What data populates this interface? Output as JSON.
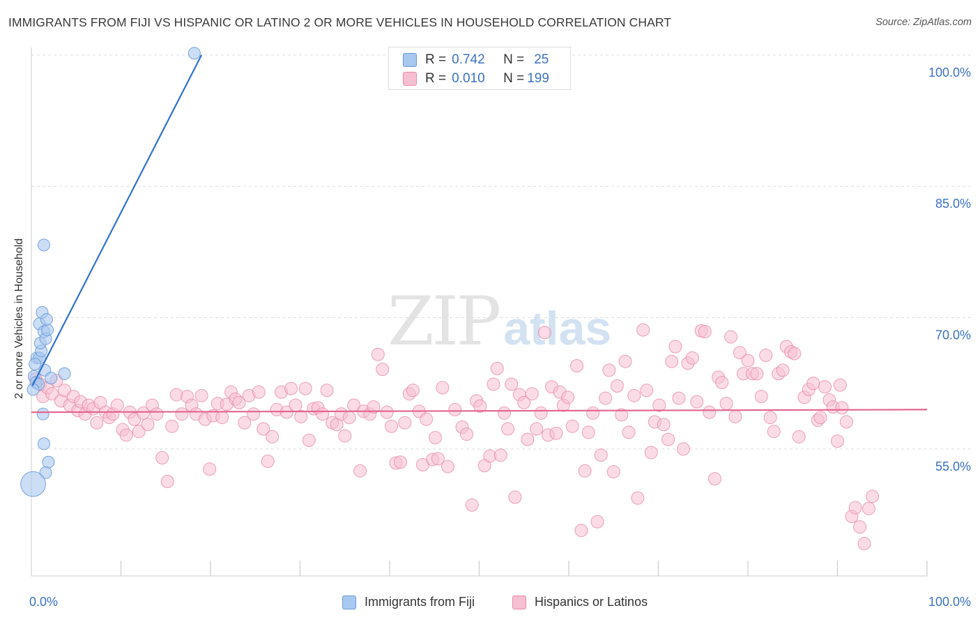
{
  "header": {
    "title": "IMMIGRANTS FROM FIJI VS HISPANIC OR LATINO 2 OR MORE VEHICLES IN HOUSEHOLD CORRELATION CHART",
    "source": "Source: ZipAtlas.com"
  },
  "watermark": {
    "zip": "ZIP",
    "atlas": "atlas"
  },
  "stats": {
    "rows": [
      {
        "r_label": "R =",
        "r_value": "0.742",
        "n_label": "N =",
        "n_value": "25",
        "color": "#a9c8f0",
        "border": "#6a9ad8"
      },
      {
        "r_label": "R =",
        "r_value": "0.010",
        "n_label": "N =",
        "n_value": "199",
        "color": "#f7bfd2",
        "border": "#e68aa9"
      }
    ]
  },
  "chart_data": {
    "type": "scatter",
    "title": "IMMIGRANTS FROM FIJI VS HISPANIC OR LATINO 2 OR MORE VEHICLES IN HOUSEHOLD CORRELATION CHART",
    "xlabel": "",
    "ylabel": "2 or more Vehicles in Household",
    "xlim": [
      0,
      100
    ],
    "ylim": [
      40.5,
      101.5
    ],
    "x_tick_labels": [
      "0.0%",
      "100.0%"
    ],
    "y_ticks": [
      100,
      85,
      70,
      55
    ],
    "y_tick_labels": [
      "100.0%",
      "85.0%",
      "70.0%",
      "55.0%"
    ],
    "grid": true,
    "legend_position": "bottom",
    "series": [
      {
        "name": "Immigrants from Fiji",
        "color": "#a9c8f0",
        "stroke": "#6a9ad8",
        "trend_color": "#2f72d0",
        "trend": {
          "x": [
            0.1,
            19.0
          ],
          "y": [
            62.2,
            100.0
          ]
        },
        "points": [
          [
            0.3,
            63.3
          ],
          [
            0.5,
            62.6
          ],
          [
            0.8,
            62.4
          ],
          [
            0.6,
            65.4
          ],
          [
            0.9,
            65.4
          ],
          [
            1.1,
            66.2
          ],
          [
            1.0,
            67.1
          ],
          [
            0.9,
            69.3
          ],
          [
            1.2,
            70.6
          ],
          [
            1.4,
            68.4
          ],
          [
            1.6,
            67.6
          ],
          [
            1.8,
            68.6
          ],
          [
            1.7,
            69.8
          ],
          [
            1.5,
            64.0
          ],
          [
            2.2,
            63.1
          ],
          [
            3.7,
            63.6
          ],
          [
            1.3,
            59.0
          ],
          [
            1.4,
            55.6
          ],
          [
            1.9,
            53.5
          ],
          [
            1.6,
            52.3
          ],
          [
            1.4,
            78.3
          ],
          [
            0.4,
            64.7
          ],
          [
            0.2,
            51.0
          ],
          [
            0.2,
            61.8
          ],
          [
            18.2,
            100.2
          ]
        ],
        "sizes": [
          10,
          10,
          10,
          10,
          10,
          10,
          10,
          10,
          10,
          10,
          10,
          10,
          10,
          10,
          10,
          10,
          10,
          10,
          10,
          10,
          10,
          10,
          21,
          10,
          10
        ]
      },
      {
        "name": "Hispanics or Latinos",
        "color": "#f7bfd2",
        "stroke": "#e68aa9",
        "trend_color": "#e4638e",
        "trend": {
          "x": [
            0,
            100
          ],
          "y": [
            59.2,
            59.5
          ]
        },
        "points": [
          [
            0.5,
            63.0
          ],
          [
            1.0,
            62.4
          ],
          [
            1.3,
            61.0
          ],
          [
            1.8,
            62.0
          ],
          [
            2.3,
            61.3
          ],
          [
            2.8,
            62.8
          ],
          [
            3.3,
            60.5
          ],
          [
            3.7,
            61.7
          ],
          [
            4.3,
            60.0
          ],
          [
            4.7,
            61.0
          ],
          [
            5.2,
            59.4
          ],
          [
            5.5,
            60.4
          ],
          [
            6.0,
            59.0
          ],
          [
            6.4,
            60.0
          ],
          [
            6.9,
            59.6
          ],
          [
            7.3,
            58.0
          ],
          [
            7.7,
            60.3
          ],
          [
            8.3,
            59.2
          ],
          [
            8.7,
            58.6
          ],
          [
            9.1,
            59.0
          ],
          [
            9.6,
            60.0
          ],
          [
            10.2,
            57.2
          ],
          [
            10.6,
            56.6
          ],
          [
            11.0,
            59.2
          ],
          [
            11.5,
            58.4
          ],
          [
            12.0,
            57.0
          ],
          [
            12.5,
            59.1
          ],
          [
            13.0,
            57.8
          ],
          [
            13.5,
            60.0
          ],
          [
            14.0,
            59.0
          ],
          [
            14.6,
            54.0
          ],
          [
            15.2,
            51.3
          ],
          [
            15.7,
            57.6
          ],
          [
            16.2,
            61.2
          ],
          [
            16.8,
            59.0
          ],
          [
            17.4,
            61.0
          ],
          [
            17.9,
            60.0
          ],
          [
            18.4,
            59.0
          ],
          [
            19.0,
            61.1
          ],
          [
            19.4,
            58.4
          ],
          [
            19.9,
            52.7
          ],
          [
            20.3,
            58.8
          ],
          [
            20.8,
            60.2
          ],
          [
            21.3,
            58.6
          ],
          [
            21.8,
            60.1
          ],
          [
            22.3,
            61.5
          ],
          [
            22.8,
            60.7
          ],
          [
            23.2,
            60.3
          ],
          [
            23.8,
            58.0
          ],
          [
            24.3,
            61.1
          ],
          [
            24.8,
            59.0
          ],
          [
            25.4,
            61.5
          ],
          [
            25.9,
            57.3
          ],
          [
            26.4,
            53.6
          ],
          [
            26.9,
            56.4
          ],
          [
            27.4,
            59.5
          ],
          [
            27.9,
            61.5
          ],
          [
            28.5,
            59.2
          ],
          [
            29.0,
            61.9
          ],
          [
            29.5,
            60.0
          ],
          [
            30.1,
            58.7
          ],
          [
            30.6,
            61.9
          ],
          [
            31.0,
            56.0
          ],
          [
            31.5,
            59.6
          ],
          [
            32.0,
            59.7
          ],
          [
            32.5,
            59.0
          ],
          [
            33.0,
            61.7
          ],
          [
            33.6,
            58.0
          ],
          [
            34.1,
            57.8
          ],
          [
            34.6,
            59.0
          ],
          [
            35.0,
            56.5
          ],
          [
            35.5,
            58.6
          ],
          [
            36.0,
            60.0
          ],
          [
            36.7,
            52.5
          ],
          [
            37.1,
            59.3
          ],
          [
            37.8,
            59.0
          ],
          [
            38.2,
            59.8
          ],
          [
            38.7,
            65.8
          ],
          [
            39.2,
            64.1
          ],
          [
            39.7,
            59.2
          ],
          [
            40.2,
            57.6
          ],
          [
            40.7,
            53.4
          ],
          [
            41.2,
            53.5
          ],
          [
            41.7,
            58.0
          ],
          [
            42.2,
            61.3
          ],
          [
            42.6,
            61.7
          ],
          [
            43.3,
            59.3
          ],
          [
            43.7,
            53.2
          ],
          [
            44.1,
            58.4
          ],
          [
            44.8,
            53.8
          ],
          [
            45.1,
            56.3
          ],
          [
            45.4,
            53.9
          ],
          [
            45.9,
            62.0
          ],
          [
            46.5,
            53.0
          ],
          [
            47.3,
            59.5
          ],
          [
            48.1,
            57.5
          ],
          [
            48.6,
            56.7
          ],
          [
            49.2,
            48.6
          ],
          [
            49.7,
            60.5
          ],
          [
            50.1,
            59.9
          ],
          [
            50.6,
            53.1
          ],
          [
            51.2,
            54.2
          ],
          [
            51.6,
            62.4
          ],
          [
            52.0,
            64.2
          ],
          [
            52.4,
            54.3
          ],
          [
            52.8,
            59.1
          ],
          [
            53.2,
            57.3
          ],
          [
            53.6,
            62.4
          ],
          [
            54.0,
            49.5
          ],
          [
            54.5,
            61.2
          ],
          [
            55.0,
            60.3
          ],
          [
            55.4,
            56.1
          ],
          [
            55.9,
            61.3
          ],
          [
            56.4,
            57.3
          ],
          [
            56.9,
            59.1
          ],
          [
            57.3,
            68.3
          ],
          [
            57.7,
            56.6
          ],
          [
            58.1,
            62.1
          ],
          [
            58.6,
            56.8
          ],
          [
            59.0,
            61.5
          ],
          [
            59.4,
            60.0
          ],
          [
            59.9,
            60.9
          ],
          [
            60.4,
            57.6
          ],
          [
            60.9,
            64.5
          ],
          [
            61.4,
            45.7
          ],
          [
            61.8,
            52.5
          ],
          [
            62.2,
            56.9
          ],
          [
            62.7,
            59.1
          ],
          [
            63.2,
            46.7
          ],
          [
            63.6,
            54.3
          ],
          [
            64.1,
            60.8
          ],
          [
            64.5,
            64.0
          ],
          [
            65.0,
            52.4
          ],
          [
            65.4,
            62.2
          ],
          [
            65.9,
            58.9
          ],
          [
            66.3,
            65.0
          ],
          [
            66.7,
            56.9
          ],
          [
            67.3,
            61.1
          ],
          [
            67.7,
            49.4
          ],
          [
            68.3,
            68.6
          ],
          [
            68.7,
            61.7
          ],
          [
            69.2,
            54.6
          ],
          [
            69.6,
            58.1
          ],
          [
            70.1,
            60.0
          ],
          [
            70.6,
            57.8
          ],
          [
            71.1,
            56.1
          ],
          [
            71.5,
            65.0
          ],
          [
            71.9,
            66.7
          ],
          [
            72.3,
            60.8
          ],
          [
            72.8,
            55.0
          ],
          [
            73.3,
            64.8
          ],
          [
            73.8,
            65.4
          ],
          [
            74.3,
            60.4
          ],
          [
            74.8,
            68.5
          ],
          [
            75.2,
            68.4
          ],
          [
            75.7,
            59.2
          ],
          [
            76.3,
            51.6
          ],
          [
            76.7,
            63.2
          ],
          [
            77.1,
            62.6
          ],
          [
            77.6,
            60.2
          ],
          [
            78.1,
            67.8
          ],
          [
            78.6,
            58.7
          ],
          [
            79.1,
            66.0
          ],
          [
            79.5,
            63.6
          ],
          [
            80.0,
            65.1
          ],
          [
            80.5,
            63.6
          ],
          [
            81.0,
            63.6
          ],
          [
            81.5,
            61.0
          ],
          [
            82.0,
            65.7
          ],
          [
            82.5,
            58.6
          ],
          [
            82.9,
            57.0
          ],
          [
            83.4,
            63.6
          ],
          [
            83.9,
            64.0
          ],
          [
            84.3,
            66.7
          ],
          [
            84.8,
            66.1
          ],
          [
            85.2,
            65.9
          ],
          [
            85.7,
            56.4
          ],
          [
            86.3,
            60.9
          ],
          [
            86.8,
            61.8
          ],
          [
            87.3,
            62.5
          ],
          [
            87.8,
            58.3
          ],
          [
            88.1,
            58.6
          ],
          [
            88.6,
            62.1
          ],
          [
            89.1,
            60.6
          ],
          [
            89.5,
            59.8
          ],
          [
            90.0,
            55.9
          ],
          [
            90.5,
            59.7
          ],
          [
            91.0,
            58.1
          ],
          [
            91.6,
            47.3
          ],
          [
            92.0,
            48.3
          ],
          [
            92.5,
            46.1
          ],
          [
            93.0,
            44.2
          ],
          [
            93.5,
            48.2
          ],
          [
            93.9,
            49.6
          ],
          [
            90.3,
            62.3
          ]
        ]
      }
    ]
  },
  "legend": {
    "items": [
      {
        "label": "Immigrants from Fiji",
        "color": "#a9c8f0",
        "border": "#6a9ad8"
      },
      {
        "label": "Hispanics or Latinos",
        "color": "#f7bfd2",
        "border": "#e68aa9"
      }
    ]
  }
}
